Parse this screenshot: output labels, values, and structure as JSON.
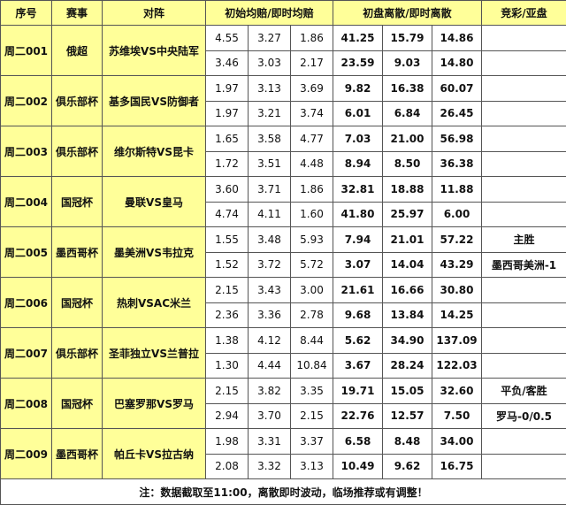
{
  "headers": [
    "序号",
    "赛事",
    "对阵",
    "初始均赔/即时均赔",
    "初盘离散/即时离散",
    "竞彩/亚盘"
  ],
  "matches": [
    {
      "id": "周二001",
      "league": "俄超",
      "teams": "苏维埃VS中央陆军",
      "rows": [
        {
          "odds": [
            "4.55",
            "3.27",
            "1.86"
          ],
          "disp": [
            "41.25",
            "15.79",
            "14.86"
          ],
          "tip": ""
        },
        {
          "odds": [
            "3.46",
            "3.03",
            "2.17"
          ],
          "disp": [
            "23.59",
            "9.03",
            "14.80"
          ],
          "tip": ""
        }
      ]
    },
    {
      "id": "周二002",
      "league": "俱乐部杯",
      "teams": "基多国民VS防御者",
      "rows": [
        {
          "odds": [
            "1.97",
            "3.13",
            "3.69"
          ],
          "disp": [
            "9.82",
            "16.38",
            "60.07"
          ],
          "tip": ""
        },
        {
          "odds": [
            "1.97",
            "3.21",
            "3.74"
          ],
          "disp": [
            "6.01",
            "6.84",
            "26.45"
          ],
          "tip": ""
        }
      ]
    },
    {
      "id": "周二003",
      "league": "俱乐部杯",
      "teams": "维尔斯特VS昆卡",
      "rows": [
        {
          "odds": [
            "1.65",
            "3.58",
            "4.77"
          ],
          "disp": [
            "7.03",
            "21.00",
            "56.98"
          ],
          "tip": ""
        },
        {
          "odds": [
            "1.72",
            "3.51",
            "4.48"
          ],
          "disp": [
            "8.94",
            "8.50",
            "36.38"
          ],
          "tip": ""
        }
      ]
    },
    {
      "id": "周二004",
      "league": "国冠杯",
      "teams": "曼联VS皇马",
      "rows": [
        {
          "odds": [
            "3.60",
            "3.71",
            "1.86"
          ],
          "disp": [
            "32.81",
            "18.88",
            "11.88"
          ],
          "tip": ""
        },
        {
          "odds": [
            "4.74",
            "4.11",
            "1.60"
          ],
          "disp": [
            "41.80",
            "25.97",
            "6.00"
          ],
          "tip": ""
        }
      ]
    },
    {
      "id": "周二005",
      "league": "墨西哥杯",
      "teams": "墨美洲VS韦拉克",
      "rows": [
        {
          "odds": [
            "1.55",
            "3.48",
            "5.93"
          ],
          "disp": [
            "7.94",
            "21.01",
            "57.22"
          ],
          "tip": "主胜"
        },
        {
          "odds": [
            "1.52",
            "3.72",
            "5.72"
          ],
          "disp": [
            "3.07",
            "14.04",
            "43.29"
          ],
          "tip": "墨西哥美洲-1"
        }
      ]
    },
    {
      "id": "周二006",
      "league": "国冠杯",
      "teams": "热刺VSAC米兰",
      "rows": [
        {
          "odds": [
            "2.15",
            "3.43",
            "3.00"
          ],
          "disp": [
            "21.61",
            "16.66",
            "30.80"
          ],
          "tip": ""
        },
        {
          "odds": [
            "2.36",
            "3.36",
            "2.78"
          ],
          "disp": [
            "9.68",
            "13.84",
            "14.25"
          ],
          "tip": ""
        }
      ]
    },
    {
      "id": "周二007",
      "league": "俱乐部杯",
      "teams": "圣菲独立VS兰普拉",
      "rows": [
        {
          "odds": [
            "1.38",
            "4.12",
            "8.44"
          ],
          "disp": [
            "5.62",
            "34.90",
            "137.09"
          ],
          "tip": ""
        },
        {
          "odds": [
            "1.30",
            "4.44",
            "10.84"
          ],
          "disp": [
            "3.67",
            "28.24",
            "122.03"
          ],
          "tip": ""
        }
      ]
    },
    {
      "id": "周二008",
      "league": "国冠杯",
      "teams": "巴塞罗那VS罗马",
      "rows": [
        {
          "odds": [
            "2.15",
            "3.82",
            "3.35"
          ],
          "disp": [
            "19.71",
            "15.05",
            "32.60"
          ],
          "tip": "平负/客胜"
        },
        {
          "odds": [
            "2.94",
            "3.70",
            "2.15"
          ],
          "disp": [
            "22.76",
            "12.57",
            "7.50"
          ],
          "tip": "罗马-0/0.5"
        }
      ]
    },
    {
      "id": "周二009",
      "league": "墨西哥杯",
      "teams": "帕丘卡VS拉古纳",
      "rows": [
        {
          "odds": [
            "1.98",
            "3.31",
            "3.37"
          ],
          "disp": [
            "6.58",
            "8.48",
            "34.00"
          ],
          "tip": ""
        },
        {
          "odds": [
            "2.08",
            "3.32",
            "3.13"
          ],
          "disp": [
            "10.49",
            "9.62",
            "16.75"
          ],
          "tip": ""
        }
      ]
    }
  ],
  "footer": "注：数据截取至11:00，离散即时波动，临场推荐或有调整！",
  "colors": {
    "highlight": "#ffff99",
    "border": "#555555"
  }
}
